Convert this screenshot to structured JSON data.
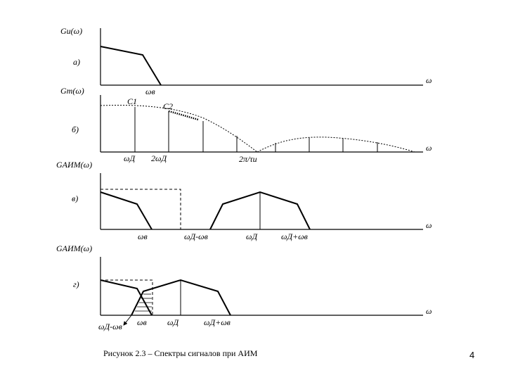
{
  "panel_a": {
    "ylabel": "Gи(ω)",
    "tag": "а)",
    "omega_axis": "ω",
    "omega_b": "ωв"
  },
  "panel_b": {
    "ylabel": "Gт(ω)",
    "tag": "б)",
    "omega_axis": "ω",
    "c1": "C1",
    "c2": "C2",
    "tick_1": "ωД",
    "tick_2": "2ωД",
    "tick_3": "2π/τи"
  },
  "panel_c": {
    "ylabel": "GАИМ(ω)",
    "tag": "в)",
    "omega_axis": "ω",
    "tick_1": "ωв",
    "tick_2": "ωД-ωв",
    "tick_3": "ωД",
    "tick_4": "ωД+ωв"
  },
  "panel_d": {
    "ylabel": "GАИМ(ω)",
    "tag": "г)",
    "omega_axis": "ω",
    "tick_1": "ωД-ωв",
    "tick_2": "ωв",
    "tick_3": "ωД",
    "tick_4": "ωД+ωв"
  },
  "caption": "Рисунок 2.3 – Спектры сигналов при АИМ",
  "page_number": "4"
}
